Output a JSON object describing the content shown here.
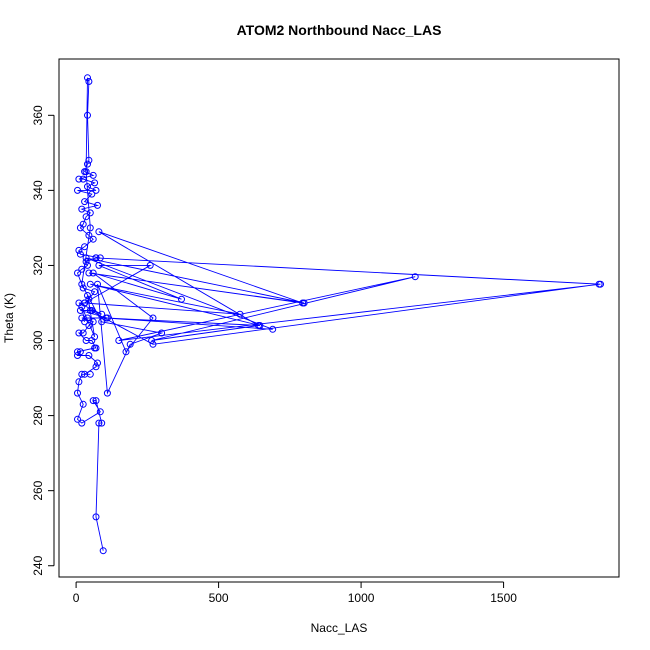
{
  "chart_data": {
    "type": "line",
    "title": "ATOM2 Northbound Nacc_LAS",
    "xlabel": "Nacc_LAS",
    "ylabel": "Theta (K)",
    "xlim": [
      -60,
      1905
    ],
    "ylim": [
      237,
      375
    ],
    "xticks": [
      0,
      500,
      1000,
      1500
    ],
    "xtick_labels": [
      "0",
      "500",
      "1000",
      "1500"
    ],
    "yticks": [
      240,
      260,
      280,
      300,
      320,
      340,
      360
    ],
    "ytick_labels": [
      "240",
      "260",
      "280",
      "300",
      "320",
      "340",
      "360"
    ],
    "grid": false,
    "legend": "none",
    "series_color": "#0000ff",
    "series": [
      {
        "points": [
          [
            95,
            244
          ],
          [
            70,
            253
          ],
          [
            80,
            278
          ],
          [
            90,
            278
          ],
          [
            70,
            284
          ],
          [
            60,
            284
          ],
          [
            85,
            281
          ],
          [
            20,
            278
          ],
          [
            5,
            279
          ],
          [
            25,
            283
          ],
          [
            5,
            286
          ],
          [
            10,
            289
          ],
          [
            20,
            291
          ],
          [
            50,
            291
          ],
          [
            30,
            291
          ],
          [
            70,
            293
          ],
          [
            75,
            294
          ],
          [
            45,
            296
          ],
          [
            5,
            296
          ],
          [
            15,
            297
          ],
          [
            5,
            297
          ],
          [
            65,
            298
          ],
          [
            70,
            298
          ],
          [
            55,
            300
          ],
          [
            35,
            300
          ],
          [
            10,
            302
          ],
          [
            25,
            302
          ],
          [
            45,
            304
          ],
          [
            60,
            305
          ],
          [
            20,
            306
          ],
          [
            40,
            306
          ],
          [
            110,
            306
          ],
          [
            15,
            308
          ],
          [
            55,
            308
          ],
          [
            90,
            307
          ],
          [
            10,
            310
          ],
          [
            30,
            310
          ],
          [
            45,
            311
          ],
          [
            65,
            313
          ],
          [
            25,
            314
          ],
          [
            5,
            318
          ],
          [
            20,
            319
          ],
          [
            40,
            320
          ],
          [
            35,
            321
          ],
          [
            70,
            322
          ],
          [
            85,
            322
          ],
          [
            15,
            323
          ],
          [
            10,
            324
          ],
          [
            30,
            325
          ],
          [
            60,
            327
          ],
          [
            45,
            328
          ],
          [
            15,
            330
          ],
          [
            25,
            331
          ],
          [
            35,
            333
          ],
          [
            50,
            334
          ],
          [
            20,
            335
          ],
          [
            75,
            336
          ],
          [
            30,
            337
          ],
          [
            55,
            339
          ],
          [
            5,
            340
          ],
          [
            70,
            340
          ],
          [
            40,
            341
          ],
          [
            65,
            342
          ],
          [
            25,
            343
          ],
          [
            10,
            343
          ],
          [
            60,
            344
          ],
          [
            30,
            345
          ],
          [
            40,
            347
          ],
          [
            45,
            348
          ],
          [
            40,
            360
          ],
          [
            45,
            369
          ],
          [
            40,
            370
          ],
          [
            35,
            345
          ],
          [
            50,
            330
          ],
          [
            20,
            315
          ],
          [
            90,
            305
          ],
          [
            300,
            302
          ],
          [
            190,
            299
          ],
          [
            110,
            286
          ],
          [
            75,
            315
          ],
          [
            175,
            297
          ],
          [
            270,
            306
          ],
          [
            60,
            318
          ],
          [
            370,
            311
          ],
          [
            80,
            320
          ],
          [
            260,
            320
          ],
          [
            30,
            310
          ],
          [
            575,
            307
          ],
          [
            50,
            315
          ],
          [
            645,
            304
          ],
          [
            105,
            306
          ],
          [
            690,
            303
          ],
          [
            35,
            322
          ],
          [
            800,
            310
          ],
          [
            45,
            318
          ],
          [
            795,
            310
          ],
          [
            80,
            329
          ],
          [
            640,
            304
          ],
          [
            265,
            300
          ],
          [
            1190,
            317
          ],
          [
            150,
            300
          ],
          [
            1840,
            315
          ],
          [
            70,
            322
          ],
          [
            1835,
            315
          ],
          [
            270,
            299
          ],
          [
            50,
            308
          ],
          [
            40,
            312
          ],
          [
            65,
            301
          ],
          [
            20,
            309
          ],
          [
            30,
            305
          ]
        ]
      }
    ]
  }
}
